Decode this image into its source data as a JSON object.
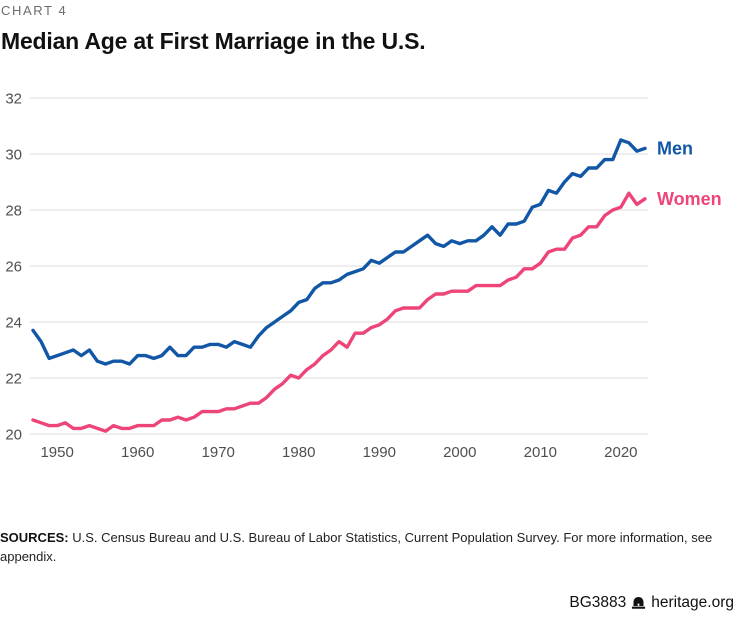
{
  "kicker": "CHART 4",
  "title": "Median Age at First Marriage in the U.S.",
  "footer": {
    "sources_label": "SOURCES:",
    "sources_text": " U.S. Census Bureau and U.S. Bureau of Labor Statistics, Current Population Survey. For more information, see appendix.",
    "doc_id": "BG3883",
    "site": "heritage.org",
    "bell_icon": "heritage-liberty-bell"
  },
  "chart_data": {
    "type": "line",
    "title": "Median Age at First Marriage in the U.S.",
    "xlabel": "",
    "ylabel": "",
    "ylim": [
      20,
      32
    ],
    "yticks": [
      20,
      22,
      24,
      26,
      28,
      30,
      32
    ],
    "xticks": [
      1950,
      1960,
      1970,
      1980,
      1990,
      2000,
      2010,
      2020
    ],
    "grid": true,
    "grid_color": "#dcdcdc",
    "tick_color": "#4f4f4f",
    "legend_position": "right-of-line-end",
    "x": [
      1947,
      1948,
      1949,
      1950,
      1951,
      1952,
      1953,
      1954,
      1955,
      1956,
      1957,
      1958,
      1959,
      1960,
      1961,
      1962,
      1963,
      1964,
      1965,
      1966,
      1967,
      1968,
      1969,
      1970,
      1971,
      1972,
      1973,
      1974,
      1975,
      1976,
      1977,
      1978,
      1979,
      1980,
      1981,
      1982,
      1983,
      1984,
      1985,
      1986,
      1987,
      1988,
      1989,
      1990,
      1991,
      1992,
      1993,
      1994,
      1995,
      1996,
      1997,
      1998,
      1999,
      2000,
      2001,
      2002,
      2003,
      2004,
      2005,
      2006,
      2007,
      2008,
      2009,
      2010,
      2011,
      2012,
      2013,
      2014,
      2015,
      2016,
      2017,
      2018,
      2019,
      2020,
      2021,
      2022,
      2023
    ],
    "series": [
      {
        "name": "Men",
        "color": "#1257A6",
        "values": [
          23.7,
          23.3,
          22.7,
          22.8,
          22.9,
          23.0,
          22.8,
          23.0,
          22.6,
          22.5,
          22.6,
          22.6,
          22.5,
          22.8,
          22.8,
          22.7,
          22.8,
          23.1,
          22.8,
          22.8,
          23.1,
          23.1,
          23.2,
          23.2,
          23.1,
          23.3,
          23.2,
          23.1,
          23.5,
          23.8,
          24.0,
          24.2,
          24.4,
          24.7,
          24.8,
          25.2,
          25.4,
          25.4,
          25.5,
          25.7,
          25.8,
          25.9,
          26.2,
          26.1,
          26.3,
          26.5,
          26.5,
          26.7,
          26.9,
          27.1,
          26.8,
          26.7,
          26.9,
          26.8,
          26.9,
          26.9,
          27.1,
          27.4,
          27.1,
          27.5,
          27.5,
          27.6,
          28.1,
          28.2,
          28.7,
          28.6,
          29.0,
          29.3,
          29.2,
          29.5,
          29.5,
          29.8,
          29.8,
          30.5,
          30.4,
          30.1,
          30.2
        ]
      },
      {
        "name": "Women",
        "color": "#EE4579",
        "values": [
          20.5,
          20.4,
          20.3,
          20.3,
          20.4,
          20.2,
          20.2,
          20.3,
          20.2,
          20.1,
          20.3,
          20.2,
          20.2,
          20.3,
          20.3,
          20.3,
          20.5,
          20.5,
          20.6,
          20.5,
          20.6,
          20.8,
          20.8,
          20.8,
          20.9,
          20.9,
          21.0,
          21.1,
          21.1,
          21.3,
          21.6,
          21.8,
          22.1,
          22.0,
          22.3,
          22.5,
          22.8,
          23.0,
          23.3,
          23.1,
          23.6,
          23.6,
          23.8,
          23.9,
          24.1,
          24.4,
          24.5,
          24.5,
          24.5,
          24.8,
          25.0,
          25.0,
          25.1,
          25.1,
          25.1,
          25.3,
          25.3,
          25.3,
          25.3,
          25.5,
          25.6,
          25.9,
          25.9,
          26.1,
          26.5,
          26.6,
          26.6,
          27.0,
          27.1,
          27.4,
          27.4,
          27.8,
          28.0,
          28.1,
          28.6,
          28.2,
          28.4
        ]
      }
    ]
  }
}
